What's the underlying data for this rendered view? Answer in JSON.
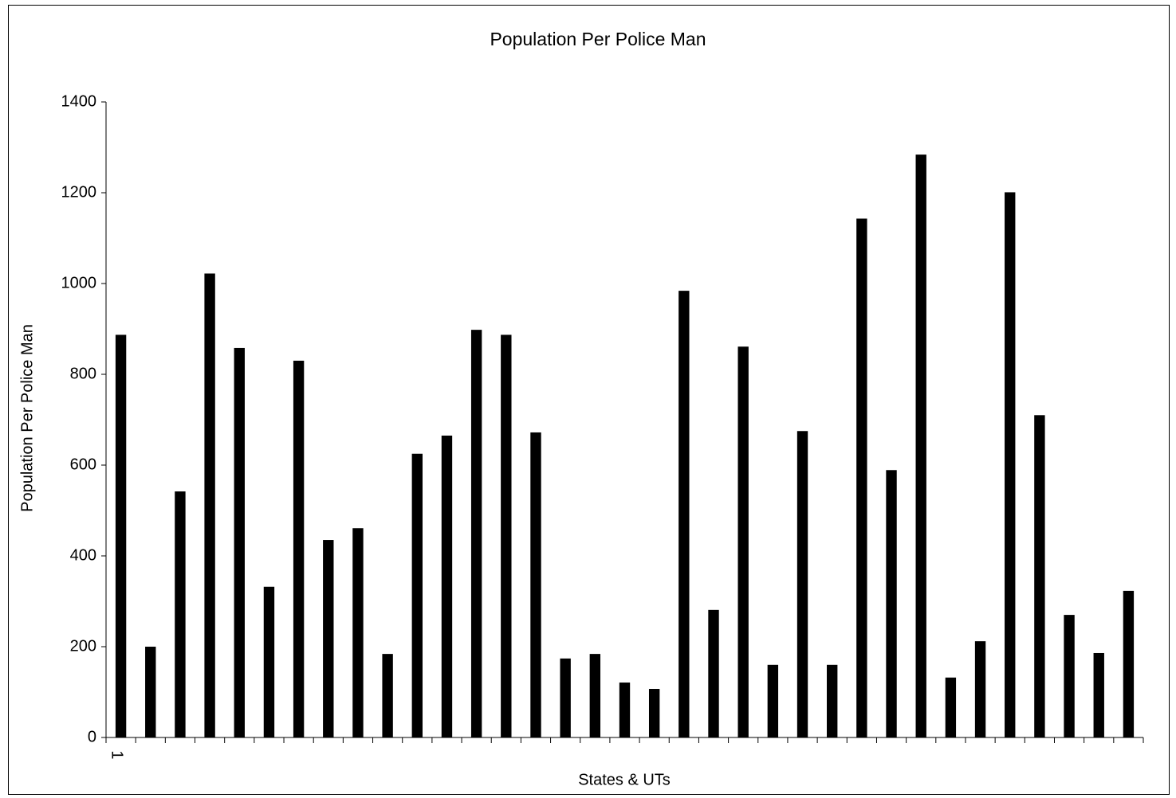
{
  "chart_data": {
    "type": "bar",
    "title": "Population Per Police Man",
    "x_label": "States & UTs",
    "y_label": "Population Per Police Man",
    "categories": [
      "1",
      null,
      null,
      null,
      null,
      null,
      null,
      null,
      null,
      null,
      null,
      null,
      null,
      null,
      null,
      null,
      null,
      null,
      null,
      null,
      null,
      null,
      null,
      null,
      null,
      null,
      null,
      null,
      null,
      null,
      null,
      null,
      null,
      null,
      null
    ],
    "values": [
      887,
      200,
      542,
      1022,
      858,
      332,
      830,
      435,
      461,
      184,
      625,
      665,
      898,
      887,
      672,
      174,
      184,
      121,
      107,
      984,
      281,
      861,
      160,
      675,
      160,
      1143,
      589,
      1284,
      132,
      212,
      1201,
      710,
      270,
      186,
      323
    ],
    "color": "#000000",
    "ylim": [
      0,
      1400
    ],
    "yticks": [
      0,
      200,
      400,
      600,
      800,
      1000,
      1200,
      1400
    ],
    "grid": false
  }
}
